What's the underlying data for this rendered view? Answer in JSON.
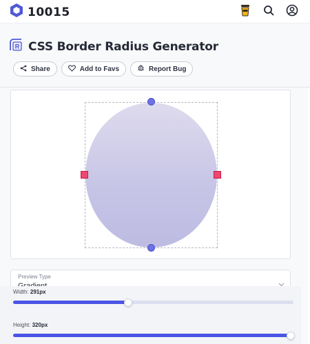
{
  "brand": {
    "name": "10015",
    "accent": "#4f5bd5"
  },
  "header": {
    "title": "CSS Border Radius Generator",
    "actions": [
      {
        "label": "Share",
        "icon": "share-icon"
      },
      {
        "label": "Add to Favs",
        "icon": "heart-icon"
      },
      {
        "label": "Report Bug",
        "icon": "bug-icon"
      }
    ]
  },
  "topbar": {
    "icons": [
      "coffee-icon",
      "search-icon",
      "user-icon"
    ]
  },
  "preview_type": {
    "label": "Preview Type",
    "value": "Gradient"
  },
  "sliders": {
    "width": {
      "label": "Width:",
      "value": "291px",
      "fraction": 0.41
    },
    "height": {
      "label": "Height:",
      "value": "320px",
      "fraction": 0.99
    }
  },
  "colors": {
    "handle_round": "#6d72e3",
    "handle_square": "#ef476f",
    "slider_fill": "#4a55e6"
  }
}
